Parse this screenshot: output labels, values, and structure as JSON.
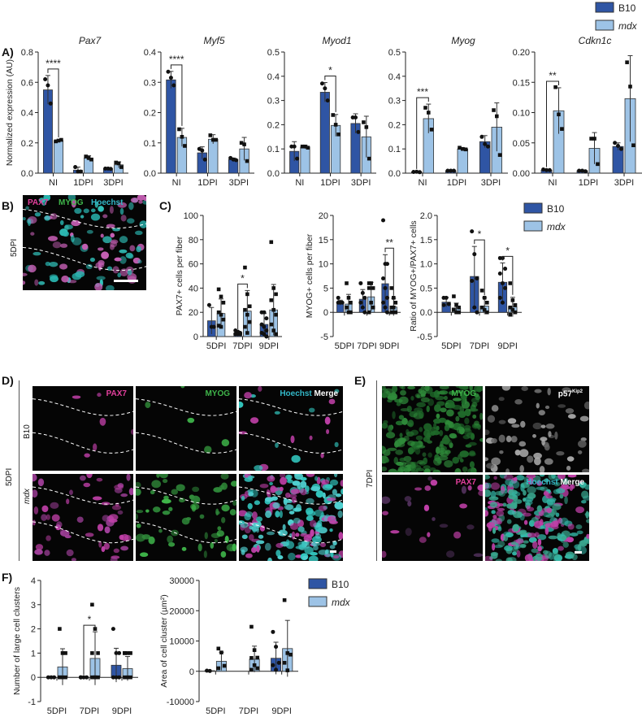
{
  "colors": {
    "B10": "#2f55a4",
    "mdx": "#9dc3e6",
    "PAX7": "#e23f9c",
    "MYOG": "#3fb54a",
    "Hoechst": "#33b8c8",
    "Merge": "#ffffff",
    "p57": "#ffffff"
  },
  "panels": {
    "A": "A)",
    "B": "B)",
    "C": "C)",
    "D": "D)",
    "E": "E)",
    "F": "F)"
  },
  "legend": {
    "b10": "B10",
    "mdx": "mdx"
  },
  "panel_b": {
    "labels": [
      "PAX7",
      "MYOG",
      "Hoechst"
    ],
    "timepoint": "5DPI"
  },
  "panel_d": {
    "labels": {
      "pax7": "PAX7",
      "myog": "MYOG",
      "hoechst": "Hoechst",
      "merge": "Merge"
    },
    "rows": [
      "B10",
      "mdx"
    ],
    "timepoint": "5DPI"
  },
  "panel_e": {
    "labels": {
      "myog": "MYOG",
      "p57": "p57",
      "p57_sup": "Kip2",
      "pax7": "PAX7",
      "hoechst": "Hoechst",
      "merge": "Merge"
    },
    "timepoint": "7DPI"
  },
  "chart_data": [
    {
      "type": "bar",
      "id": "pax7",
      "title": "Pax7",
      "title_italic": true,
      "ylabel": "Normalized expression (AU)",
      "ylim": [
        0,
        0.8
      ],
      "yticks": [
        "0.0",
        "0.2",
        "0.4",
        "0.6",
        "0.8"
      ],
      "categories": [
        "NI",
        "1DPI",
        "3DPI"
      ],
      "series": [
        {
          "name": "B10",
          "means": [
            0.55,
            0.02,
            0.03
          ],
          "sd": [
            0.095,
            0.02,
            0.005
          ],
          "points": [
            [
              0.62,
              0.58,
              0.46
            ],
            [
              0.04,
              0.01,
              0.01
            ],
            [
              0.03,
              0.03,
              0.028
            ]
          ]
        },
        {
          "name": "mdx",
          "means": [
            0.215,
            0.1,
            0.055
          ],
          "sd": [
            0.005,
            0.015,
            0.02
          ],
          "points": [
            [
              0.21,
              0.215,
              0.22
            ],
            [
              0.11,
              0.1,
              0.09
            ],
            [
              0.07,
              0.065,
              0.04
            ]
          ]
        }
      ],
      "significance": [
        {
          "category": "NI",
          "label": "****"
        }
      ]
    },
    {
      "type": "bar",
      "id": "myf5",
      "title": "Myf5",
      "title_italic": true,
      "ylabel": "",
      "ylim": [
        0,
        0.4
      ],
      "yticks": [
        "0.0",
        "0.1",
        "0.2",
        "0.3",
        "0.4"
      ],
      "categories": [
        "NI",
        "1DPI",
        "3DPI"
      ],
      "series": [
        {
          "name": "B10",
          "means": [
            0.308,
            0.067,
            0.045
          ],
          "sd": [
            0.028,
            0.02,
            0.005
          ],
          "points": [
            [
              0.335,
              0.315,
              0.29
            ],
            [
              0.08,
              0.075,
              0.045
            ],
            [
              0.05,
              0.045,
              0.043
            ]
          ]
        },
        {
          "name": "mdx",
          "means": [
            0.118,
            0.112,
            0.08
          ],
          "sd": [
            0.03,
            0.015,
            0.038
          ],
          "points": [
            [
              0.145,
              0.12,
              0.09
            ],
            [
              0.125,
              0.11,
              0.11
            ],
            [
              0.1,
              0.095,
              0.04
            ]
          ]
        }
      ],
      "significance": [
        {
          "category": "NI",
          "label": "****"
        }
      ]
    },
    {
      "type": "bar",
      "id": "myod1",
      "title": "Myod1",
      "title_italic": true,
      "ylabel": "",
      "ylim": [
        0,
        0.5
      ],
      "yticks": [
        "0.0",
        "0.1",
        "0.2",
        "0.3",
        "0.4",
        "0.5"
      ],
      "categories": [
        "NI",
        "1DPI",
        "3DPI"
      ],
      "series": [
        {
          "name": "B10",
          "means": [
            0.09,
            0.334,
            0.205
          ],
          "sd": [
            0.04,
            0.04,
            0.04
          ],
          "points": [
            [
              0.11,
              0.11,
              0.06
            ],
            [
              0.37,
              0.35,
              0.3
            ],
            [
              0.23,
              0.23,
              0.17
            ]
          ]
        },
        {
          "name": "mdx",
          "means": [
            0.108,
            0.197,
            0.15
          ],
          "sd": [
            0.007,
            0.045,
            0.085
          ],
          "points": [
            [
              0.11,
              0.11,
              0.105
            ],
            [
              0.24,
              0.2,
              0.16
            ],
            [
              0.21,
              0.19,
              0.06
            ]
          ]
        }
      ],
      "significance": [
        {
          "category": "1DPI",
          "label": "*"
        }
      ]
    },
    {
      "type": "bar",
      "id": "myog",
      "title": "Myog",
      "title_italic": true,
      "ylabel": "",
      "ylim": [
        0,
        0.5
      ],
      "yticks": [
        "0.0",
        "0.1",
        "0.2",
        "0.3",
        "0.4",
        "0.5"
      ],
      "categories": [
        "NI",
        "1DPI",
        "3DPI"
      ],
      "series": [
        {
          "name": "B10",
          "means": [
            0.005,
            0.01,
            0.13
          ],
          "sd": [
            0.002,
            0.001,
            0.025
          ],
          "points": [
            [
              0.005,
              0.006,
              0.004
            ],
            [
              0.01,
              0.01,
              0.01
            ],
            [
              0.15,
              0.12,
              0.11
            ]
          ]
        },
        {
          "name": "mdx",
          "means": [
            0.225,
            0.1,
            0.19
          ],
          "sd": [
            0.06,
            0.005,
            0.1
          ],
          "points": [
            [
              0.27,
              0.25,
              0.18
            ],
            [
              0.105,
              0.1,
              0.098
            ],
            [
              0.26,
              0.235,
              0.075
            ]
          ]
        }
      ],
      "significance": [
        {
          "category": "NI",
          "label": "***"
        }
      ]
    },
    {
      "type": "bar",
      "id": "cdkn1c",
      "title": "Cdkn1c",
      "title_italic": true,
      "ylabel": "",
      "ylim": [
        0,
        0.2
      ],
      "yticks": [
        "0.00",
        "0.05",
        "0.10",
        "0.15",
        "0.20"
      ],
      "categories": [
        "NI",
        "1DPI",
        "3DPI"
      ],
      "series": [
        {
          "name": "B10",
          "means": [
            0.005,
            0.004,
            0.044
          ],
          "sd": [
            0.001,
            0.001,
            0.006
          ],
          "points": [
            [
              0.006,
              0.005,
              0.005
            ],
            [
              0.004,
              0.004,
              0.003
            ],
            [
              0.05,
              0.045,
              0.04
            ]
          ]
        },
        {
          "name": "mdx",
          "means": [
            0.103,
            0.041,
            0.123
          ],
          "sd": [
            0.038,
            0.026,
            0.071
          ],
          "points": [
            [
              0.142,
              0.097,
              0.073
            ],
            [
              0.057,
              0.057,
              0.015
            ],
            [
              0.183,
              0.143,
              0.046
            ]
          ]
        }
      ],
      "significance": [
        {
          "category": "NI",
          "label": "**"
        }
      ]
    },
    {
      "type": "bar",
      "id": "pax7-cells",
      "title": "",
      "ylabel": "PAX7+ cells per fiber",
      "ylim": [
        0,
        100
      ],
      "yticks": [
        "0",
        "20",
        "40",
        "60",
        "80",
        "100"
      ],
      "categories": [
        "5DPI",
        "7DPI",
        "9DPI"
      ],
      "series": [
        {
          "name": "B10",
          "means": [
            13,
            3,
            10
          ],
          "sd": [
            11,
            1,
            9
          ],
          "points": [
            [
              26,
              8,
              8
            ],
            [
              5,
              4,
              3,
              2,
              2,
              2
            ],
            [
              20,
              20,
              15,
              10,
              8,
              5,
              3,
              2,
              0
            ]
          ]
        },
        {
          "name": "mdx",
          "means": [
            19,
            21,
            22
          ],
          "sd": [
            12,
            17,
            21
          ],
          "points": [
            [
              39,
              33,
              28,
              20,
              18,
              14,
              9,
              8
            ],
            [
              57,
              35,
              25,
              22,
              18,
              12,
              8,
              3
            ],
            [
              78,
              40,
              35,
              30,
              22,
              18,
              10,
              5,
              2
            ]
          ]
        }
      ],
      "significance": [
        {
          "category": "7DPI",
          "label": "*"
        }
      ]
    },
    {
      "type": "bar",
      "id": "myog-cells",
      "title": "",
      "ylabel": "MYOG+ cells per fiber",
      "ylim": [
        -5,
        20
      ],
      "yticks": [
        "-5",
        "0",
        "5",
        "10",
        "15",
        "20"
      ],
      "categories": [
        "5DPI",
        "7DPI",
        "9DPI"
      ],
      "series": [
        {
          "name": "B10",
          "means": [
            2,
            2.7,
            5.9
          ],
          "sd": [
            0.5,
            2,
            6
          ],
          "points": [
            [
              3,
              2,
              2,
              2
            ],
            [
              6,
              4,
              3,
              2,
              1,
              0
            ],
            [
              19,
              10,
              10,
              7,
              5,
              3,
              2,
              1,
              0
            ]
          ]
        },
        {
          "name": "mdx",
          "means": [
            1.7,
            3.2,
            1.1
          ],
          "sd": [
            2,
            3,
            1.8
          ],
          "points": [
            [
              6,
              3,
              2,
              1,
              0,
              0
            ],
            [
              6,
              6,
              5,
              5,
              2,
              1,
              0
            ],
            [
              5,
              3,
              2,
              1,
              1,
              0,
              0,
              0
            ]
          ]
        }
      ],
      "significance": [
        {
          "category": "9DPI",
          "label": "**"
        }
      ]
    },
    {
      "type": "bar",
      "id": "ratio",
      "title": "",
      "ylabel": "Ratio of MYOG+/PAX7+ cells",
      "ylim": [
        -0.5,
        2.0
      ],
      "yticks": [
        "-0.5",
        "0.0",
        "0.5",
        "1.0",
        "1.5",
        "2.0"
      ],
      "categories": [
        "5DPI",
        "7DPI",
        "9DPI"
      ],
      "series": [
        {
          "name": "B10",
          "means": [
            0.21,
            0.74,
            0.62
          ],
          "sd": [
            0.1,
            0.62,
            0.4
          ],
          "points": [
            [
              0.3,
              0.3,
              0.17,
              0.15
            ],
            [
              1.67,
              1.2,
              0.7,
              0.65,
              0.1,
              0
            ],
            [
              1.12,
              1.12,
              0.9,
              0.8,
              0.6,
              0.5,
              0.3,
              0.2
            ]
          ]
        },
        {
          "name": "mdx",
          "means": [
            0.09,
            0.13,
            0.11
          ],
          "sd": [
            0.1,
            0.17,
            0.2
          ],
          "points": [
            [
              0.33,
              0.15,
              0.1,
              0.05,
              0,
              0
            ],
            [
              0.45,
              0.3,
              0.2,
              0.1,
              0.05,
              0
            ],
            [
              0.6,
              0.25,
              0.15,
              0.1,
              0.05,
              0,
              -0.05
            ]
          ]
        }
      ],
      "significance": [
        {
          "category": "7DPI",
          "label": "*"
        },
        {
          "category": "9DPI",
          "label": "*"
        }
      ]
    },
    {
      "type": "bar",
      "id": "clusters",
      "title": "",
      "ylabel": "Number of large cell clusters",
      "ylim": [
        -1,
        4
      ],
      "yticks": [
        "-1",
        "0",
        "1",
        "2",
        "3",
        "4"
      ],
      "categories": [
        "5DPI",
        "7DPI",
        "9DPI"
      ],
      "series": [
        {
          "name": "B10",
          "means": [
            0,
            0,
            0.5
          ],
          "sd": [
            0,
            0,
            0.7
          ],
          "points": [
            [
              0,
              0,
              0
            ],
            [
              0,
              0,
              0,
              0
            ],
            [
              2,
              1,
              1,
              0,
              0,
              0
            ]
          ]
        },
        {
          "name": "mdx",
          "means": [
            0.43,
            0.78,
            0.36
          ],
          "sd": [
            0.75,
            1.1,
            0.5
          ],
          "points": [
            [
              2,
              1,
              1,
              0,
              0,
              0,
              0
            ],
            [
              3,
              2,
              1,
              1,
              0,
              0,
              0,
              0
            ],
            [
              1,
              1,
              1,
              1,
              0,
              0,
              0
            ]
          ]
        }
      ],
      "significance": [
        {
          "category": "7DPI",
          "label": "*"
        }
      ]
    },
    {
      "type": "bar",
      "id": "cluster-area",
      "title": "",
      "ylabel": "Area of cell cluster (µm²)",
      "ylim": [
        -10000,
        30000
      ],
      "yticks": [
        "-10000",
        "0",
        "10000",
        "20000",
        "30000"
      ],
      "categories": [
        "5DPI",
        "7DPI",
        "9DPI"
      ],
      "series": [
        {
          "name": "B10",
          "means": [
            200,
            0,
            4300
          ],
          "sd": [
            0,
            0,
            5300
          ],
          "points": [
            [
              200,
              100
            ],
            [],
            [
              13000,
              8100,
              2800,
              2000,
              500
            ]
          ]
        },
        {
          "name": "mdx",
          "means": [
            3300,
            4000,
            7500
          ],
          "sd": [
            3000,
            4300,
            9300
          ],
          "points": [
            [
              7500,
              6200,
              1800,
              1000
            ],
            [
              14700,
              7000,
              4500,
              4400,
              2000,
              1000,
              500
            ],
            [
              23500,
              6000,
              5500,
              2800,
              300
            ]
          ]
        }
      ],
      "significance": []
    }
  ]
}
